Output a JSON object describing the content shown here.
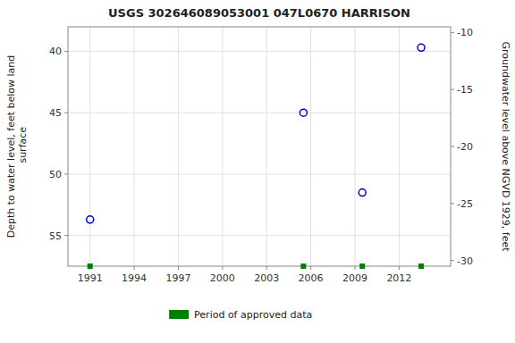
{
  "chart_data": {
    "type": "scatter",
    "title": "USGS 302646089053001 047L0670  HARRISON",
    "y_label": "Depth to water level, feet below land\n surface",
    "y2_label": "Groundwater level above NGVD 1929, feet",
    "series": [
      {
        "color": "#0000cc",
        "marker": "circle",
        "x": [
          1991.0,
          2005.5,
          2009.5,
          2013.5
        ],
        "values": [
          53.7,
          45.0,
          51.5,
          39.7
        ]
      },
      {
        "name": "Period of approved data",
        "color": "#008000",
        "marker": "square",
        "x": [
          1991.0,
          2005.5,
          2009.5,
          2013.5
        ],
        "values": [
          57.5,
          57.5,
          57.5,
          57.5
        ]
      }
    ],
    "xlim": [
      1989.5,
      2015.5
    ],
    "ylim": [
      57.5,
      38.0
    ],
    "y2lim": [
      -30.5,
      -9.5
    ],
    "xticks": [
      1991,
      1994,
      1997,
      2000,
      2003,
      2006,
      2009,
      2012
    ],
    "yticks": [
      40,
      45,
      50,
      55
    ],
    "y2ticks": [
      -10,
      -15,
      -20,
      -25,
      -30
    ],
    "grid": true,
    "legend": "bottom"
  }
}
